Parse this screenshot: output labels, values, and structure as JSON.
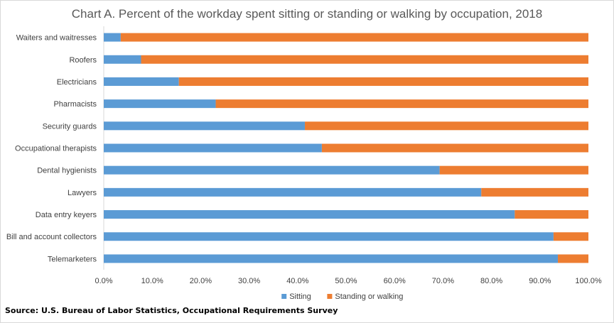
{
  "chart_data": {
    "type": "bar",
    "orientation": "horizontal",
    "stacked": true,
    "title": "Chart A. Percent of the workday spent sitting or standing or walking by occupation, 2018",
    "categories": [
      "Waiters and waitresses",
      "Roofers",
      "Electricians",
      "Pharmacists",
      "Security guards",
      "Occupational therapists",
      "Dental hygienists",
      "Lawyers",
      "Data entry keyers",
      "Bill and account collectors",
      "Telemarketers"
    ],
    "series": [
      {
        "name": "Sitting",
        "color": "#5b9bd5",
        "values": [
          3.5,
          7.7,
          15.5,
          23.1,
          41.5,
          45.0,
          69.3,
          77.9,
          84.8,
          92.8,
          93.7
        ]
      },
      {
        "name": "Standing or walking",
        "color": "#ed7d31",
        "values": [
          96.5,
          92.3,
          84.5,
          76.9,
          58.5,
          55.0,
          30.7,
          22.1,
          15.2,
          7.2,
          6.3
        ]
      }
    ],
    "xlim": [
      0,
      100
    ],
    "xticks": [
      "0.0%",
      "10.0%",
      "20.0%",
      "30.0%",
      "40.0%",
      "50.0%",
      "60.0%",
      "70.0%",
      "80.0%",
      "90.0%",
      "100.0%"
    ],
    "xlabel": "",
    "ylabel": "",
    "grid": false,
    "legend_position": "bottom"
  },
  "source_text": "Source: U.S. Bureau of Labor Statistics, Occupational Requirements Survey"
}
